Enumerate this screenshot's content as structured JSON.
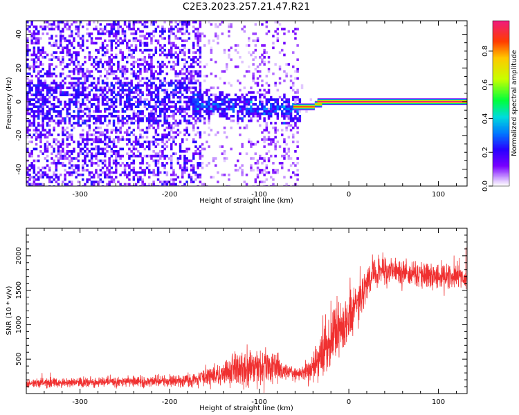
{
  "title": "C2E3.2023.257.21.47.R21",
  "colors": {
    "snr_line": "#f03030",
    "colorbar_top": "#f0207a"
  },
  "chart_data": [
    {
      "type": "heatmap",
      "xlabel": "Height of straight line (km)",
      "ylabel": "Frequency (Hz)",
      "xlim": [
        -360,
        132
      ],
      "ylim": [
        -50,
        48
      ],
      "xticks": [
        -300,
        -200,
        -100,
        0,
        100
      ],
      "yticks": [
        -40,
        -20,
        0,
        20,
        40
      ],
      "colormap": "rainbow (white at 0)",
      "colorbar": {
        "label": "Normalized spectral amplitude",
        "range": [
          0,
          1
        ],
        "ticks": [
          "0.0",
          "0.2",
          "0.4",
          "0.6",
          "0.8"
        ]
      },
      "regions": [
        {
          "x_range": [
            -360,
            -165
          ],
          "freq_range": [
            -50,
            48
          ],
          "amplitude": 0.2,
          "note": "scattered noise"
        },
        {
          "x_range": [
            -165,
            -110
          ],
          "freq_range": [
            -50,
            48
          ],
          "amplitude": 0.1,
          "note": "sparse noise"
        },
        {
          "x_range": [
            -110,
            -60
          ],
          "freq_range": [
            -50,
            48
          ],
          "amplitude": 0.15,
          "note": "scattered noise"
        },
        {
          "x_range": [
            -170,
            -60
          ],
          "freq_range": [
            -10,
            10
          ],
          "amplitude": 0.4,
          "note": "concentrated signal near 0 Hz"
        },
        {
          "x_range": [
            -60,
            -35
          ],
          "freq_center": -3,
          "amplitude": 0.8
        },
        {
          "x_range": [
            -35,
            0
          ],
          "freq_center": 0,
          "amplitude": 0.7
        },
        {
          "x_range": [
            -35,
            132
          ],
          "freq_center": 0,
          "amplitude": 1.0,
          "note": "steady tone"
        }
      ]
    },
    {
      "type": "line",
      "xlabel": "Height of straight line (km)",
      "ylabel": "SNR (10 * v/v)",
      "xlim": [
        -360,
        132
      ],
      "ylim": [
        0,
        2400
      ],
      "xticks": [
        -300,
        -200,
        -100,
        0,
        100
      ],
      "yticks": [
        500,
        1000,
        1500,
        2000
      ],
      "series": [
        {
          "x": [
            -360,
            -300,
            -250,
            -200,
            -170,
            -150,
            -130,
            -110,
            -95,
            -85,
            -70,
            -55,
            -45,
            -35,
            -25,
            -15,
            -5,
            5,
            15,
            25,
            35,
            60,
            80,
            100,
            132
          ],
          "mean": [
            150,
            160,
            170,
            180,
            200,
            260,
            360,
            380,
            400,
            380,
            300,
            300,
            320,
            500,
            700,
            900,
            1000,
            1150,
            1450,
            1700,
            1800,
            1750,
            1720,
            1700,
            1700
          ],
          "spread": [
            100,
            100,
            110,
            120,
            150,
            250,
            350,
            400,
            450,
            350,
            180,
            150,
            250,
            400,
            600,
            700,
            600,
            500,
            450,
            350,
            320,
            300,
            300,
            300,
            300
          ]
        }
      ]
    }
  ]
}
